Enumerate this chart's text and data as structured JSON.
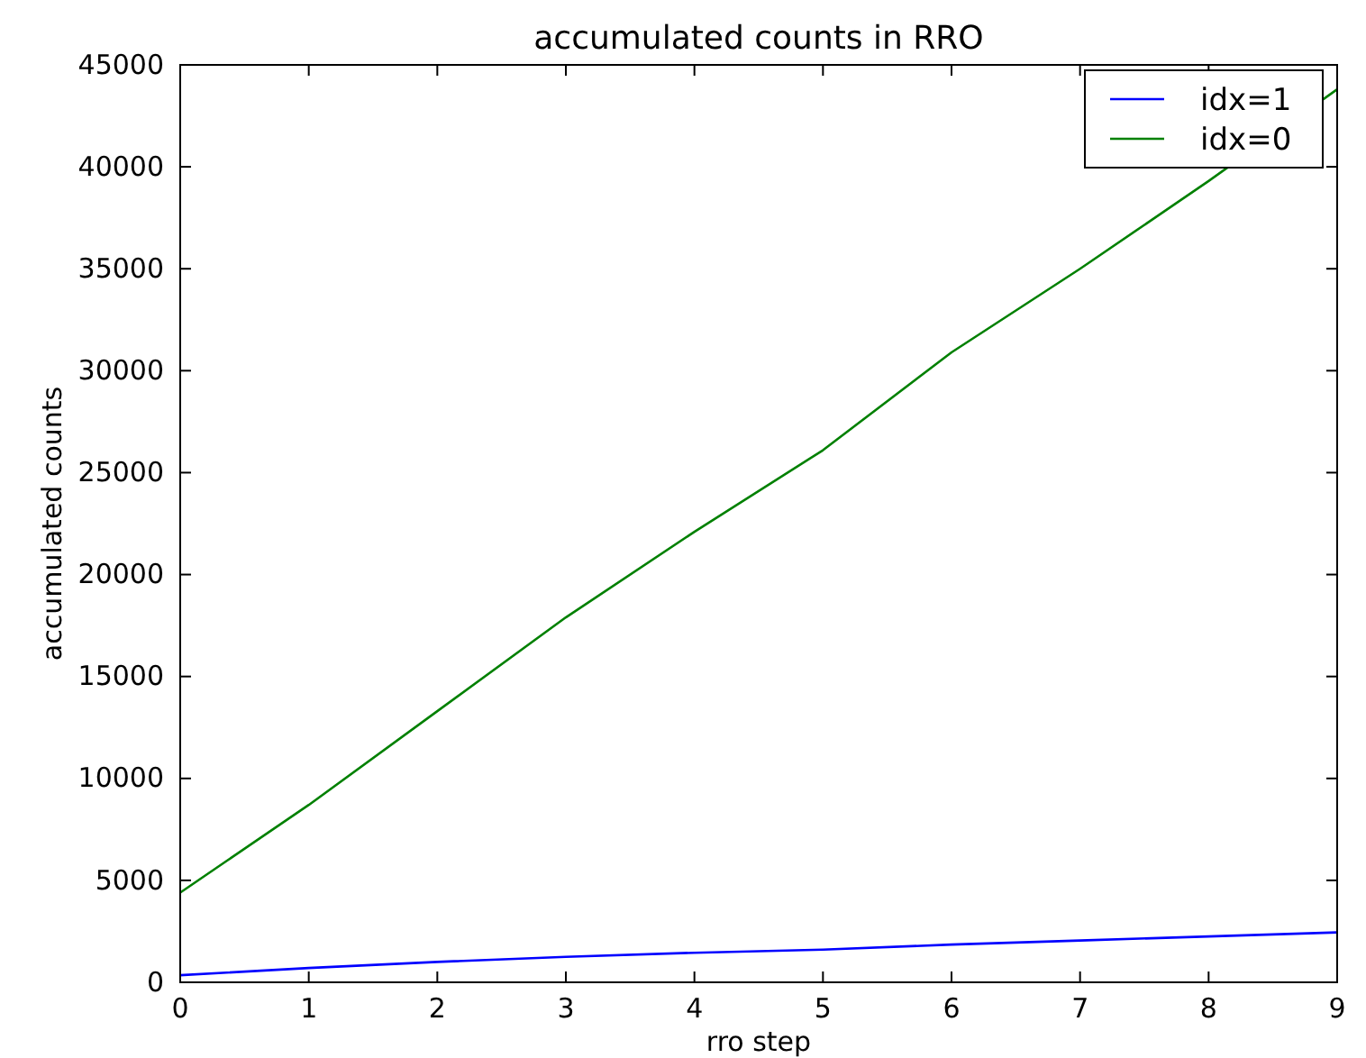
{
  "chart_data": {
    "type": "line",
    "title": "accumulated counts in RRO",
    "xlabel": "rro step",
    "ylabel": "accumulated counts",
    "x": [
      0,
      1,
      2,
      3,
      4,
      5,
      6,
      7,
      8,
      9
    ],
    "series": [
      {
        "name": "idx=1",
        "color": "#0000ff",
        "values": [
          350,
          700,
          1000,
          1250,
          1450,
          1600,
          1850,
          2050,
          2250,
          2450
        ]
      },
      {
        "name": "idx=0",
        "color": "#008000",
        "values": [
          4400,
          8700,
          13300,
          17900,
          22100,
          26100,
          30900,
          35000,
          39300,
          43800
        ]
      }
    ],
    "xlim": [
      0,
      9
    ],
    "xticks": [
      0,
      1,
      2,
      3,
      4,
      5,
      6,
      7,
      8,
      9
    ],
    "ylim": [
      0,
      45000
    ],
    "yticks": [
      0,
      5000,
      10000,
      15000,
      20000,
      25000,
      30000,
      35000,
      40000,
      45000
    ],
    "legend": "top right",
    "grid": false,
    "line_style": "solid",
    "marker": "none"
  }
}
